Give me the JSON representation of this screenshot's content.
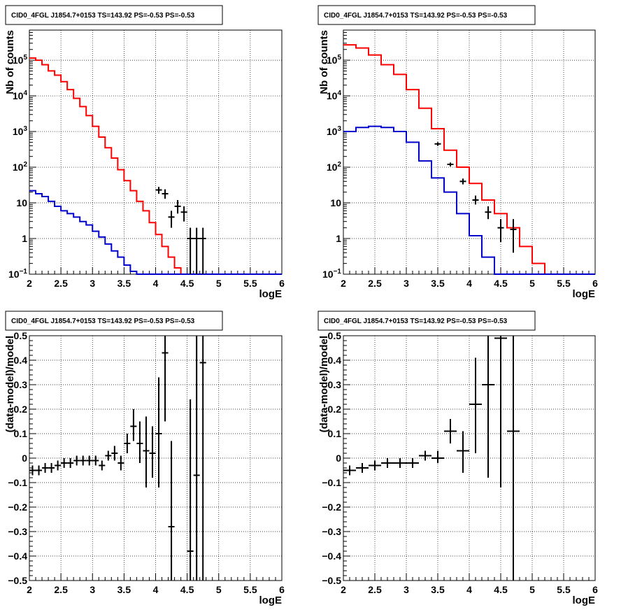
{
  "chart_data": [
    {
      "type": "line",
      "title": "CID0_4FGL J1854.7+0153 TS=143.92 PS=-0.53 PS=-0.53",
      "xlabel": "logE",
      "ylabel": "Nb of counts",
      "yscale": "log",
      "xlim": [
        2,
        6
      ],
      "ylim": [
        0.1,
        700000
      ],
      "grid": true,
      "xticks": [
        "2",
        "2.5",
        "3",
        "3.5",
        "4",
        "4.5",
        "5",
        "5.5",
        "6"
      ],
      "yticks": [
        {
          "v": 0.1,
          "base": "10",
          "exp": "−1"
        },
        {
          "v": 1,
          "label": "1"
        },
        {
          "v": 10,
          "label": "10"
        },
        {
          "v": 100,
          "base": "10",
          "exp": "2"
        },
        {
          "v": 1000,
          "base": "10",
          "exp": "3"
        },
        {
          "v": 10000,
          "base": "10",
          "exp": "4"
        },
        {
          "v": 100000,
          "base": "10",
          "exp": "5"
        }
      ],
      "bin_edges": [
        2.0,
        2.1,
        2.2,
        2.3,
        2.4,
        2.5,
        2.6,
        2.7,
        2.8,
        2.9,
        3.0,
        3.1,
        3.2,
        3.3,
        3.4,
        3.5,
        3.6,
        3.7,
        3.8,
        3.9,
        4.0,
        4.1,
        4.2,
        4.3,
        4.4,
        4.5,
        4.6,
        4.7,
        4.8,
        4.9,
        5.0,
        5.1,
        5.2,
        5.3,
        5.4,
        5.5,
        5.6,
        5.7,
        5.8,
        5.9,
        6.0
      ],
      "series": [
        {
          "color": "#ff0000",
          "style": "step",
          "values": [
            115000,
            100000,
            75000,
            50000,
            38000,
            25000,
            15000,
            8500,
            5000,
            2800,
            1400,
            700,
            350,
            180,
            85,
            42,
            22,
            11,
            6,
            2.8,
            1.3,
            0.6,
            0.3,
            0.15,
            0.1,
            0.1,
            0.1,
            0.1,
            0.1,
            0.1,
            0.1,
            0.1,
            0.1,
            0.1,
            0.1,
            0.1,
            0.1,
            0.1,
            0.1,
            0.1
          ]
        },
        {
          "color": "#0000cc",
          "style": "step",
          "values": [
            22,
            18,
            15,
            11,
            8,
            6,
            5,
            4,
            3,
            2.4,
            1.6,
            1.1,
            0.7,
            0.45,
            0.3,
            0.18,
            0.12,
            0.1,
            0.1,
            0.1,
            0.1,
            0.1,
            0.1,
            0.1,
            0.1,
            0.1,
            0.1,
            0.1,
            0.1,
            0.1,
            0.1,
            0.1,
            0.1,
            0.1,
            0.1,
            0.1,
            0.1,
            0.1,
            0.1,
            0.1
          ]
        },
        {
          "color": "#000000",
          "style": "points",
          "points": [
            {
              "x": 4.05,
              "y": 23,
              "lo": 18,
              "hi": 28
            },
            {
              "x": 4.15,
              "y": 18,
              "lo": 13,
              "hi": 24
            },
            {
              "x": 4.25,
              "y": 4,
              "lo": 2,
              "hi": 6
            },
            {
              "x": 4.35,
              "y": 8,
              "lo": 5,
              "hi": 12
            },
            {
              "x": 4.45,
              "y": 5.5,
              "lo": 3,
              "hi": 8
            },
            {
              "x": 4.55,
              "y": 1,
              "lo": 0.1,
              "hi": 2
            },
            {
              "x": 4.65,
              "y": 1,
              "lo": 0.1,
              "hi": 2
            },
            {
              "x": 4.75,
              "y": 1,
              "lo": 0.1,
              "hi": 2
            }
          ]
        }
      ]
    },
    {
      "type": "line",
      "title": "CID0_4FGL J1854.7+0153 TS=143.92 PS=-0.53 PS=-0.53",
      "xlabel": "logE",
      "ylabel": "Nb of counts",
      "yscale": "log",
      "xlim": [
        2,
        6
      ],
      "ylim": [
        0.1,
        700000
      ],
      "grid": true,
      "xticks": [
        "2",
        "2.5",
        "3",
        "3.5",
        "4",
        "4.5",
        "5",
        "5.5",
        "6"
      ],
      "yticks": [
        {
          "v": 0.1,
          "base": "10",
          "exp": "−1"
        },
        {
          "v": 1,
          "label": "1"
        },
        {
          "v": 10,
          "label": "10"
        },
        {
          "v": 100,
          "base": "10",
          "exp": "2"
        },
        {
          "v": 1000,
          "base": "10",
          "exp": "3"
        },
        {
          "v": 10000,
          "base": "10",
          "exp": "4"
        },
        {
          "v": 100000,
          "base": "10",
          "exp": "5"
        }
      ],
      "bin_edges": [
        2.0,
        2.2,
        2.4,
        2.6,
        2.8,
        3.0,
        3.2,
        3.4,
        3.6,
        3.8,
        4.0,
        4.2,
        4.4,
        4.6,
        4.8,
        5.0,
        5.2,
        5.4,
        5.6,
        5.8,
        6.0
      ],
      "series": [
        {
          "color": "#ff0000",
          "style": "step",
          "values": [
            270000,
            220000,
            140000,
            75000,
            40000,
            15000,
            4500,
            1200,
            300,
            100,
            35,
            12,
            5,
            2,
            0.6,
            0.2,
            0.1,
            0.1,
            0.1,
            0.1
          ]
        },
        {
          "color": "#0000cc",
          "style": "step",
          "values": [
            1000,
            1300,
            1400,
            1300,
            1000,
            500,
            150,
            50,
            20,
            5,
            1.2,
            0.3,
            0.1,
            0.1,
            0.1,
            0.1,
            0.1,
            0.1,
            0.1,
            0.1
          ]
        },
        {
          "color": "#000000",
          "style": "points",
          "points": [
            {
              "x": 3.5,
              "y": 450,
              "lo": 400,
              "hi": 500
            },
            {
              "x": 3.7,
              "y": 120,
              "lo": 105,
              "hi": 135
            },
            {
              "x": 3.9,
              "y": 40,
              "lo": 33,
              "hi": 48
            },
            {
              "x": 4.1,
              "y": 12,
              "lo": 9,
              "hi": 16
            },
            {
              "x": 4.3,
              "y": 5.5,
              "lo": 3.5,
              "hi": 8
            },
            {
              "x": 4.5,
              "y": 2,
              "lo": 0.8,
              "hi": 3.5
            },
            {
              "x": 4.7,
              "y": 1.8,
              "lo": 0.4,
              "hi": 3.5
            }
          ]
        }
      ]
    },
    {
      "type": "scatter",
      "title": "CID0_4FGL J1854.7+0153 TS=143.92 PS=-0.53 PS=-0.53",
      "xlabel": "logE",
      "ylabel": "(data-model)/model",
      "yscale": "linear",
      "xlim": [
        2,
        6
      ],
      "ylim": [
        -0.5,
        0.5
      ],
      "grid": true,
      "xticks": [
        "2",
        "2.5",
        "3",
        "3.5",
        "4",
        "4.5",
        "5",
        "5.5",
        "6"
      ],
      "yticks": [
        {
          "v": -0.5,
          "label": "−0.5"
        },
        {
          "v": -0.4,
          "label": "−0.4"
        },
        {
          "v": -0.3,
          "label": "−0.3"
        },
        {
          "v": -0.2,
          "label": "−0.2"
        },
        {
          "v": -0.1,
          "label": "−0.1"
        },
        {
          "v": 0,
          "label": "0"
        },
        {
          "v": 0.1,
          "label": "0.1"
        },
        {
          "v": 0.2,
          "label": "0.2"
        },
        {
          "v": 0.3,
          "label": "0.3"
        },
        {
          "v": 0.4,
          "label": "0.4"
        },
        {
          "v": 0.5,
          "label": "0.5"
        }
      ],
      "xerr": 0.05,
      "series": [
        {
          "color": "#000000",
          "style": "points",
          "points": [
            {
              "x": 2.05,
              "y": -0.05,
              "lo": -0.07,
              "hi": -0.03
            },
            {
              "x": 2.15,
              "y": -0.05,
              "lo": -0.07,
              "hi": -0.03
            },
            {
              "x": 2.25,
              "y": -0.04,
              "lo": -0.06,
              "hi": -0.02
            },
            {
              "x": 2.35,
              "y": -0.04,
              "lo": -0.06,
              "hi": -0.02
            },
            {
              "x": 2.45,
              "y": -0.03,
              "lo": -0.05,
              "hi": -0.01
            },
            {
              "x": 2.55,
              "y": -0.02,
              "lo": -0.04,
              "hi": 0.0
            },
            {
              "x": 2.65,
              "y": -0.02,
              "lo": -0.04,
              "hi": 0.0
            },
            {
              "x": 2.75,
              "y": -0.01,
              "lo": -0.03,
              "hi": 0.01
            },
            {
              "x": 2.85,
              "y": -0.01,
              "lo": -0.03,
              "hi": 0.01
            },
            {
              "x": 2.95,
              "y": -0.01,
              "lo": -0.03,
              "hi": 0.01
            },
            {
              "x": 3.05,
              "y": -0.01,
              "lo": -0.03,
              "hi": 0.01
            },
            {
              "x": 3.15,
              "y": -0.03,
              "lo": -0.05,
              "hi": -0.01
            },
            {
              "x": 3.25,
              "y": 0.01,
              "lo": -0.01,
              "hi": 0.03
            },
            {
              "x": 3.35,
              "y": 0.02,
              "lo": -0.01,
              "hi": 0.05
            },
            {
              "x": 3.45,
              "y": -0.02,
              "lo": -0.05,
              "hi": 0.01
            },
            {
              "x": 3.55,
              "y": 0.06,
              "lo": 0.02,
              "hi": 0.1
            },
            {
              "x": 3.65,
              "y": 0.13,
              "lo": 0.07,
              "hi": 0.2
            },
            {
              "x": 3.75,
              "y": 0.06,
              "lo": -0.02,
              "hi": 0.15
            },
            {
              "x": 3.85,
              "y": 0.03,
              "lo": -0.12,
              "hi": 0.17
            },
            {
              "x": 3.95,
              "y": 0.02,
              "lo": -0.08,
              "hi": 0.13
            },
            {
              "x": 4.05,
              "y": 0.1,
              "lo": -0.12,
              "hi": 0.33
            },
            {
              "x": 4.15,
              "y": 0.43,
              "lo": 0.15,
              "hi": 0.5
            },
            {
              "x": 4.25,
              "y": -0.28,
              "lo": -0.5,
              "hi": 0.07
            },
            {
              "x": 4.55,
              "y": -0.38,
              "lo": -0.5,
              "hi": 0.24
            },
            {
              "x": 4.65,
              "y": -0.07,
              "lo": -0.5,
              "hi": 0.5
            },
            {
              "x": 4.75,
              "y": 0.39,
              "lo": -0.5,
              "hi": 0.5
            }
          ]
        }
      ]
    },
    {
      "type": "scatter",
      "title": "CID0_4FGL J1854.7+0153 TS=143.92 PS=-0.53 PS=-0.53",
      "xlabel": "logE",
      "ylabel": "(data-model)/model",
      "yscale": "linear",
      "xlim": [
        2,
        6
      ],
      "ylim": [
        -0.5,
        0.5
      ],
      "grid": true,
      "xticks": [
        "2",
        "2.5",
        "3",
        "3.5",
        "4",
        "4.5",
        "5",
        "5.5",
        "6"
      ],
      "yticks": [
        {
          "v": -0.5,
          "label": "−0.5"
        },
        {
          "v": -0.4,
          "label": "−0.4"
        },
        {
          "v": -0.3,
          "label": "−0.3"
        },
        {
          "v": -0.2,
          "label": "−0.2"
        },
        {
          "v": -0.1,
          "label": "−0.1"
        },
        {
          "v": 0,
          "label": "0"
        },
        {
          "v": 0.1,
          "label": "0.1"
        },
        {
          "v": 0.2,
          "label": "0.2"
        },
        {
          "v": 0.3,
          "label": "0.3"
        },
        {
          "v": 0.4,
          "label": "0.4"
        },
        {
          "v": 0.5,
          "label": "0.5"
        }
      ],
      "xerr": 0.1,
      "series": [
        {
          "color": "#000000",
          "style": "points",
          "points": [
            {
              "x": 2.1,
              "y": -0.05,
              "lo": -0.07,
              "hi": -0.03
            },
            {
              "x": 2.3,
              "y": -0.04,
              "lo": -0.06,
              "hi": -0.02
            },
            {
              "x": 2.5,
              "y": -0.03,
              "lo": -0.05,
              "hi": -0.01
            },
            {
              "x": 2.7,
              "y": -0.02,
              "lo": -0.04,
              "hi": 0.0
            },
            {
              "x": 2.9,
              "y": -0.02,
              "lo": -0.04,
              "hi": 0.0
            },
            {
              "x": 3.1,
              "y": -0.02,
              "lo": -0.04,
              "hi": 0.0
            },
            {
              "x": 3.3,
              "y": 0.01,
              "lo": -0.01,
              "hi": 0.03
            },
            {
              "x": 3.5,
              "y": 0.0,
              "lo": -0.02,
              "hi": 0.03
            },
            {
              "x": 3.7,
              "y": 0.11,
              "lo": 0.06,
              "hi": 0.16
            },
            {
              "x": 3.9,
              "y": 0.03,
              "lo": -0.06,
              "hi": 0.11
            },
            {
              "x": 4.1,
              "y": 0.22,
              "lo": 0.02,
              "hi": 0.41
            },
            {
              "x": 4.3,
              "y": 0.3,
              "lo": -0.08,
              "hi": 0.5
            },
            {
              "x": 4.5,
              "y": 0.49,
              "lo": -0.12,
              "hi": 0.5
            },
            {
              "x": 4.7,
              "y": 0.11,
              "lo": -0.5,
              "hi": 0.5
            }
          ]
        }
      ]
    }
  ]
}
